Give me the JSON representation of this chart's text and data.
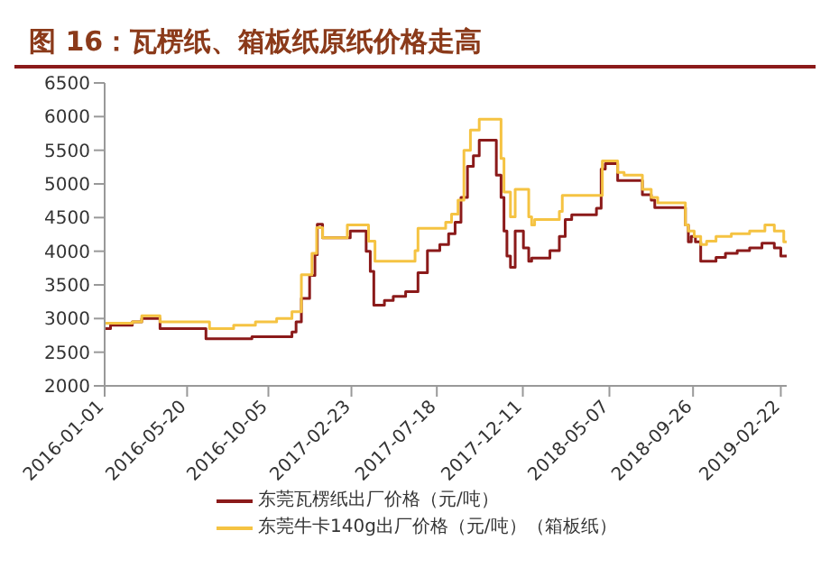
{
  "chart_data": {
    "type": "step",
    "title": "图 16：瓦楞纸、箱板纸原纸价格走高",
    "xlim": [
      "2016-01-01",
      "2019-03-04"
    ],
    "xticks": [
      "2016-01-01",
      "2016-05-20",
      "2016-10-05",
      "2017-02-23",
      "2017-07-18",
      "2017-12-11",
      "2018-05-07",
      "2018-09-26",
      "2019-02-22"
    ],
    "ylim": [
      2000,
      6500
    ],
    "yticks": [
      2000,
      2500,
      3000,
      3500,
      4000,
      4500,
      5000,
      5500,
      6000,
      6500
    ],
    "legend": "bottom",
    "series": [
      {
        "name": "东莞瓦楞纸出厂价格（元/吨）",
        "color": "#8b1a1a",
        "x": [
          "2016-01-01",
          "2016-01-11",
          "2016-02-17",
          "2016-03-04",
          "2016-04-04",
          "2016-06-21",
          "2016-09-07",
          "2016-11-14",
          "2016-11-21",
          "2016-11-30",
          "2016-12-14",
          "2016-12-23",
          "2016-12-27",
          "2017-01-05",
          "2017-02-21",
          "2017-03-20",
          "2017-03-27",
          "2017-04-02",
          "2017-04-20",
          "2017-05-05",
          "2017-05-26",
          "2017-06-16",
          "2017-07-02",
          "2017-07-23",
          "2017-08-07",
          "2017-08-18",
          "2017-08-28",
          "2017-09-08",
          "2017-09-18",
          "2017-09-28",
          "2017-10-27",
          "2017-11-04",
          "2017-11-09",
          "2017-11-14",
          "2017-11-20",
          "2017-11-28",
          "2017-12-12",
          "2017-12-21",
          "2017-12-26",
          "2018-01-26",
          "2018-02-11",
          "2018-02-21",
          "2018-03-04",
          "2018-04-15",
          "2018-04-23",
          "2018-04-30",
          "2018-05-21",
          "2018-07-02",
          "2018-07-17",
          "2018-07-23",
          "2018-09-13",
          "2018-09-18",
          "2018-09-23",
          "2018-09-30",
          "2018-10-09",
          "2018-11-04",
          "2018-11-20",
          "2018-12-10",
          "2018-12-31",
          "2019-01-21",
          "2019-02-11",
          "2019-02-22",
          "2019-03-04"
        ],
        "values": [
          2850,
          2900,
          2950,
          3000,
          2850,
          2700,
          2730,
          2800,
          2950,
          3300,
          3640,
          3950,
          4400,
          4200,
          4300,
          4000,
          3700,
          3200,
          3270,
          3330,
          3400,
          3680,
          4010,
          4100,
          4260,
          4430,
          4800,
          5260,
          5420,
          5650,
          5130,
          4800,
          4300,
          3930,
          3760,
          4300,
          4050,
          3850,
          3900,
          4010,
          4220,
          4470,
          4540,
          4640,
          5220,
          5300,
          5050,
          4840,
          4760,
          4650,
          4390,
          4140,
          4220,
          4140,
          3850,
          3910,
          3970,
          4010,
          4050,
          4120,
          4050,
          3930,
          3930
        ]
      },
      {
        "name": "东莞牛卡140g出厂价格（元/吨）（箱板纸）",
        "color": "#f5c342",
        "x": [
          "2016-01-01",
          "2016-02-17",
          "2016-03-04",
          "2016-04-04",
          "2016-06-27",
          "2016-08-07",
          "2016-09-13",
          "2016-10-19",
          "2016-11-14",
          "2016-11-30",
          "2016-12-18",
          "2016-12-26",
          "2017-01-05",
          "2017-02-16",
          "2017-03-24",
          "2017-04-04",
          "2017-06-05",
          "2017-06-11",
          "2017-06-16",
          "2017-08-02",
          "2017-08-12",
          "2017-08-23",
          "2017-09-02",
          "2017-09-13",
          "2017-09-28",
          "2017-11-04",
          "2017-11-09",
          "2017-11-20",
          "2017-11-28",
          "2017-12-21",
          "2017-12-26",
          "2017-12-31",
          "2018-02-11",
          "2018-02-16",
          "2018-04-25",
          "2018-05-21",
          "2018-06-01",
          "2018-07-02",
          "2018-07-17",
          "2018-07-28",
          "2018-09-13",
          "2018-09-18",
          "2018-09-28",
          "2018-10-09",
          "2018-10-19",
          "2018-11-04",
          "2018-11-30",
          "2018-12-31",
          "2019-01-26",
          "2019-02-11",
          "2019-02-27",
          "2019-03-04"
        ],
        "values": [
          2930,
          2950,
          3040,
          2950,
          2850,
          2900,
          2950,
          3000,
          3100,
          3650,
          3970,
          4350,
          4200,
          4390,
          4150,
          3850,
          3850,
          4010,
          4340,
          4430,
          4550,
          4760,
          5500,
          5800,
          5960,
          5380,
          4880,
          4510,
          4920,
          4510,
          4390,
          4470,
          4590,
          4830,
          5340,
          5170,
          5130,
          4920,
          4800,
          4720,
          4390,
          4300,
          4220,
          4100,
          4150,
          4220,
          4260,
          4300,
          4390,
          4300,
          4140,
          4140
        ]
      }
    ]
  }
}
